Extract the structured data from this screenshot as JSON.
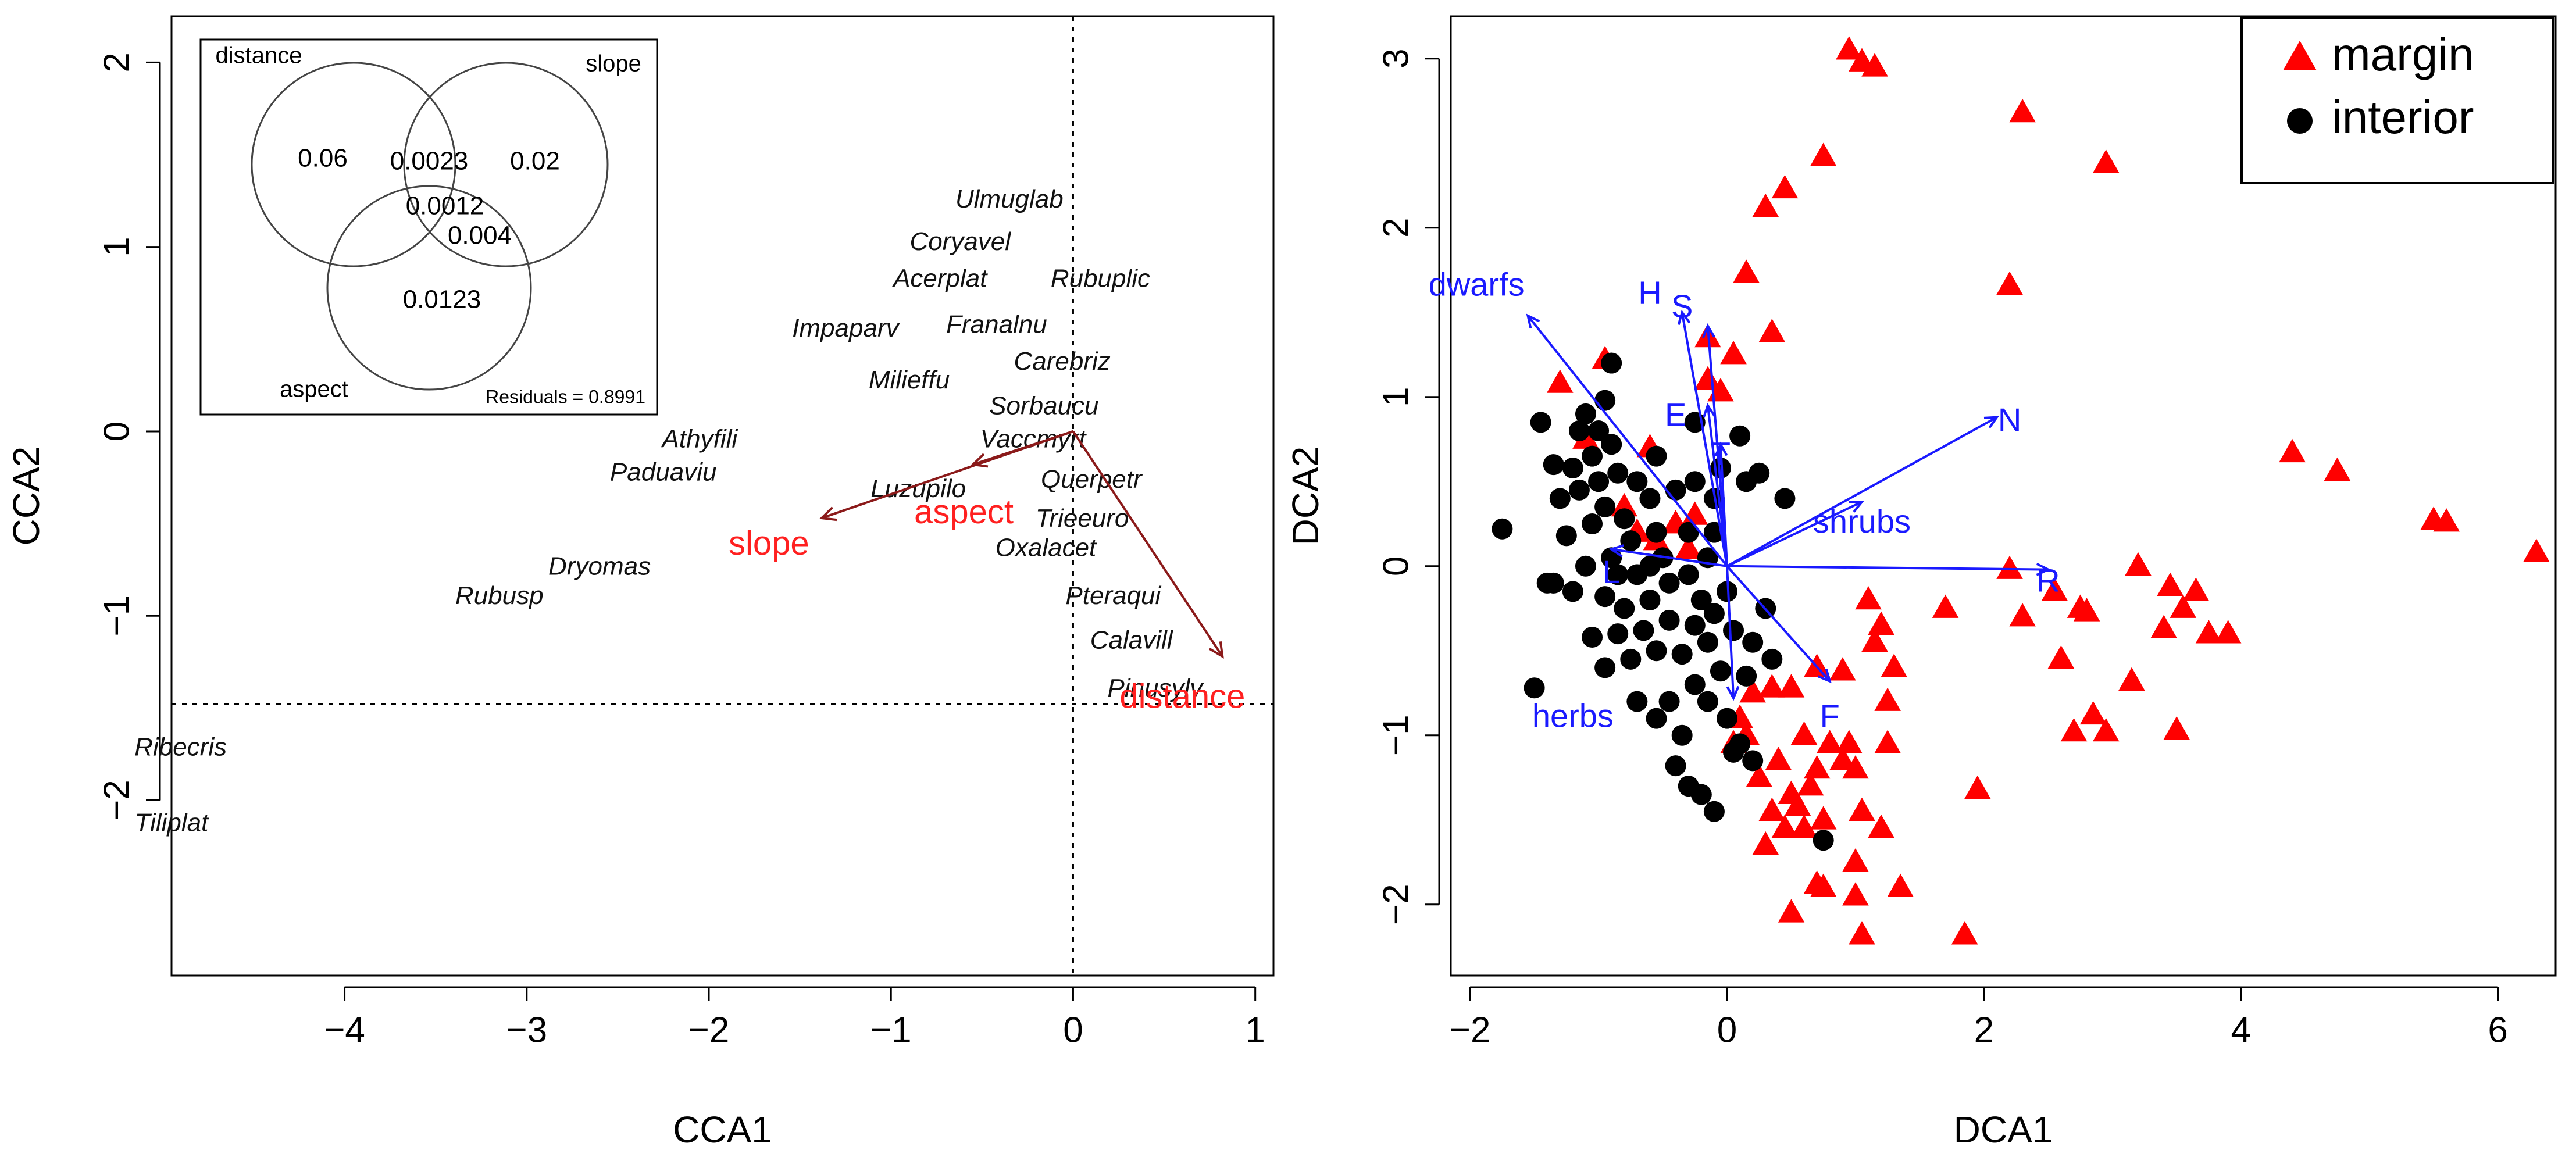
{
  "colors": {
    "arrow_cca": "#8b1a1a",
    "env_label": "#ff2020",
    "arrow_dca": "#1a1aff",
    "margin": "#ff0000",
    "interior": "#000000"
  },
  "chart_data": [
    {
      "type": "scatter",
      "panel": "left",
      "xlabel": "CCA1",
      "ylabel": "CCA2",
      "xlim": [
        -4.95,
        1.1
      ],
      "ylim": [
        -2.95,
        2.25
      ],
      "xticks": [
        -4,
        -3,
        -2,
        -1,
        0,
        1
      ],
      "yticks": [
        -2,
        -1,
        0,
        1,
        2
      ],
      "xtick_labels": [
        "−4",
        "−3",
        "−2",
        "−1",
        "0",
        "1"
      ],
      "ytick_labels": [
        "−2",
        "−1",
        "0",
        "1",
        "2"
      ],
      "reference_lines": {
        "vertical_x": 0,
        "horizontal_y": -1.48
      },
      "species": [
        {
          "label": "Ulmuglab",
          "x": -0.35,
          "y": 1.25
        },
        {
          "label": "Coryavel",
          "x": -0.62,
          "y": 1.02
        },
        {
          "label": "Acerplat",
          "x": -0.73,
          "y": 0.82
        },
        {
          "label": "Rubuplic",
          "x": 0.15,
          "y": 0.82
        },
        {
          "label": "Franalnu",
          "x": -0.42,
          "y": 0.57
        },
        {
          "label": "Impaparv",
          "x": -1.25,
          "y": 0.55
        },
        {
          "label": "Carebriz",
          "x": -0.06,
          "y": 0.37
        },
        {
          "label": "Milieffu",
          "x": -0.9,
          "y": 0.27
        },
        {
          "label": "Sorbaucu",
          "x": -0.16,
          "y": 0.13
        },
        {
          "label": "Vaccmyrt",
          "x": -0.22,
          "y": -0.05
        },
        {
          "label": "Athyfili",
          "x": -2.05,
          "y": -0.05
        },
        {
          "label": "Paduaviu",
          "x": -2.25,
          "y": -0.23
        },
        {
          "label": "Querpetr",
          "x": 0.1,
          "y": -0.27
        },
        {
          "label": "Luzupilo",
          "x": -0.85,
          "y": -0.32
        },
        {
          "label": "Trieeuro",
          "x": 0.05,
          "y": -0.48
        },
        {
          "label": "Oxalacet",
          "x": -0.15,
          "y": -0.64
        },
        {
          "label": "Dryomas",
          "x": -2.6,
          "y": -0.74
        },
        {
          "label": "Rubusp",
          "x": -3.15,
          "y": -0.9
        },
        {
          "label": "Pteraqui",
          "x": 0.22,
          "y": -0.9
        },
        {
          "label": "Calavill",
          "x": 0.32,
          "y": -1.14
        },
        {
          "label": "Pinusylv",
          "x": 0.45,
          "y": -1.4
        },
        {
          "label": "Ribecris",
          "x": -4.9,
          "y": -1.72
        },
        {
          "label": "Tiliplat",
          "x": -4.95,
          "y": -2.13
        }
      ],
      "env_vectors": [
        {
          "label": "slope",
          "x": -1.38,
          "y": -0.47,
          "label_x": -1.67,
          "label_y": -0.62
        },
        {
          "label": "aspect",
          "x": -0.55,
          "y": -0.18,
          "label_x": -0.6,
          "label_y": -0.45
        },
        {
          "label": "distance",
          "x": 0.82,
          "y": -1.22,
          "label_x": 0.6,
          "label_y": -1.45
        }
      ],
      "venn": {
        "sets": [
          "distance",
          "slope",
          "aspect"
        ],
        "values": [
          {
            "region": "distance",
            "value": "0.06"
          },
          {
            "region": "distance-slope",
            "value": "0.0023"
          },
          {
            "region": "slope",
            "value": "0.02"
          },
          {
            "region": "all",
            "value": "0.0012"
          },
          {
            "region": "slope-aspect",
            "value": "0.004"
          },
          {
            "region": "aspect",
            "value": "0.0123"
          }
        ],
        "residuals": "Residuals = 0.8991"
      }
    },
    {
      "type": "scatter",
      "panel": "right",
      "xlabel": "DCA1",
      "ylabel": "DCA2",
      "xlim": [
        -2.15,
        6.45
      ],
      "ylim": [
        -2.42,
        3.25
      ],
      "xticks": [
        -2,
        0,
        2,
        4,
        6
      ],
      "yticks": [
        -2,
        -1,
        0,
        1,
        2,
        3
      ],
      "xtick_labels": [
        "−2",
        "0",
        "2",
        "4",
        "6"
      ],
      "ytick_labels": [
        "−2",
        "−1",
        "0",
        "1",
        "2",
        "3"
      ],
      "legend": {
        "position": "top-right",
        "entries": [
          {
            "label": "margin",
            "marker": "triangle"
          },
          {
            "label": "interior",
            "marker": "circle"
          }
        ]
      },
      "series": [
        {
          "name": "margin",
          "marker": "triangle",
          "points": [
            [
              0.95,
              3.05
            ],
            [
              1.05,
              2.98
            ],
            [
              1.15,
              2.95
            ],
            [
              2.3,
              2.68
            ],
            [
              2.95,
              2.38
            ],
            [
              0.75,
              2.42
            ],
            [
              0.45,
              2.23
            ],
            [
              0.3,
              2.12
            ],
            [
              0.15,
              1.73
            ],
            [
              2.2,
              1.66
            ],
            [
              -0.15,
              1.35
            ],
            [
              0.35,
              1.38
            ],
            [
              -0.95,
              1.22
            ],
            [
              -0.15,
              1.1
            ],
            [
              -1.3,
              1.08
            ],
            [
              -0.05,
              1.03
            ],
            [
              0.05,
              1.25
            ],
            [
              -0.6,
              0.7
            ],
            [
              -1.1,
              0.75
            ],
            [
              4.4,
              0.67
            ],
            [
              4.75,
              0.56
            ],
            [
              5.5,
              0.27
            ],
            [
              5.6,
              0.26
            ],
            [
              6.3,
              0.08
            ],
            [
              -0.8,
              0.35
            ],
            [
              -0.4,
              0.25
            ],
            [
              -0.3,
              0.1
            ],
            [
              -0.7,
              0.2
            ],
            [
              -0.55,
              0.15
            ],
            [
              -0.25,
              0.3
            ],
            [
              2.2,
              -0.02
            ],
            [
              3.2,
              0.0
            ],
            [
              3.45,
              -0.12
            ],
            [
              3.65,
              -0.15
            ],
            [
              2.55,
              -0.15
            ],
            [
              2.75,
              -0.25
            ],
            [
              2.8,
              -0.27
            ],
            [
              3.55,
              -0.25
            ],
            [
              3.4,
              -0.37
            ],
            [
              3.75,
              -0.4
            ],
            [
              3.9,
              -0.4
            ],
            [
              1.1,
              -0.2
            ],
            [
              1.2,
              -0.35
            ],
            [
              1.7,
              -0.25
            ],
            [
              2.3,
              -0.3
            ],
            [
              1.15,
              -0.45
            ],
            [
              1.3,
              -0.6
            ],
            [
              0.7,
              -0.6
            ],
            [
              0.9,
              -0.62
            ],
            [
              2.6,
              -0.55
            ],
            [
              3.15,
              -0.68
            ],
            [
              1.25,
              -0.8
            ],
            [
              2.85,
              -0.88
            ],
            [
              2.95,
              -0.98
            ],
            [
              2.7,
              -0.98
            ],
            [
              3.5,
              -0.97
            ],
            [
              0.5,
              -0.72
            ],
            [
              0.35,
              -0.72
            ],
            [
              0.2,
              -0.75
            ],
            [
              0.6,
              -1.0
            ],
            [
              0.8,
              -1.05
            ],
            [
              0.4,
              -1.15
            ],
            [
              0.25,
              -1.25
            ],
            [
              0.05,
              -1.05
            ],
            [
              0.15,
              -1.0
            ],
            [
              1.25,
              -1.05
            ],
            [
              0.9,
              -1.15
            ],
            [
              1.0,
              -1.2
            ],
            [
              0.65,
              -1.3
            ],
            [
              0.5,
              -1.35
            ],
            [
              0.35,
              -1.45
            ],
            [
              0.45,
              -1.55
            ],
            [
              0.3,
              -1.65
            ],
            [
              0.6,
              -1.55
            ],
            [
              1.05,
              -1.45
            ],
            [
              1.2,
              -1.55
            ],
            [
              1.95,
              -1.32
            ],
            [
              1.0,
              -1.75
            ],
            [
              0.75,
              -1.9
            ],
            [
              0.7,
              -1.88
            ],
            [
              1.35,
              -1.9
            ],
            [
              1.0,
              -1.95
            ],
            [
              0.5,
              -2.05
            ],
            [
              1.05,
              -2.18
            ],
            [
              1.85,
              -2.18
            ],
            [
              0.55,
              -1.42
            ],
            [
              0.75,
              -1.5
            ],
            [
              0.95,
              -1.05
            ],
            [
              0.7,
              -1.2
            ],
            [
              0.1,
              -0.9
            ]
          ]
        },
        {
          "name": "interior",
          "marker": "circle",
          "points": [
            [
              -1.75,
              0.22
            ],
            [
              -1.45,
              0.85
            ],
            [
              -1.35,
              0.6
            ],
            [
              -1.5,
              -0.72
            ],
            [
              -1.4,
              -0.1
            ],
            [
              -0.9,
              1.2
            ],
            [
              -0.25,
              0.85
            ],
            [
              0.1,
              0.77
            ],
            [
              -0.05,
              0.58
            ],
            [
              -0.95,
              0.98
            ],
            [
              -1.1,
              0.9
            ],
            [
              -1.0,
              0.8
            ],
            [
              -0.9,
              0.72
            ],
            [
              -1.05,
              0.65
            ],
            [
              -1.2,
              0.58
            ],
            [
              -0.85,
              0.55
            ],
            [
              -0.7,
              0.5
            ],
            [
              -1.15,
              0.45
            ],
            [
              -1.3,
              0.4
            ],
            [
              -0.95,
              0.35
            ],
            [
              -0.6,
              0.4
            ],
            [
              -0.8,
              0.28
            ],
            [
              -1.05,
              0.25
            ],
            [
              -1.25,
              0.18
            ],
            [
              -0.75,
              0.15
            ],
            [
              -0.55,
              0.2
            ],
            [
              -0.4,
              0.45
            ],
            [
              -0.25,
              0.5
            ],
            [
              -0.1,
              0.4
            ],
            [
              -0.1,
              0.2
            ],
            [
              0.15,
              0.5
            ],
            [
              0.25,
              0.55
            ],
            [
              -0.5,
              0.05
            ],
            [
              -0.7,
              -0.05
            ],
            [
              -0.9,
              0.05
            ],
            [
              -1.1,
              0.0
            ],
            [
              -1.35,
              -0.1
            ],
            [
              -1.2,
              -0.15
            ],
            [
              -0.95,
              -0.18
            ],
            [
              -0.8,
              -0.25
            ],
            [
              -0.6,
              -0.2
            ],
            [
              -0.45,
              -0.1
            ],
            [
              -0.3,
              -0.05
            ],
            [
              -0.15,
              0.05
            ],
            [
              0.0,
              -0.15
            ],
            [
              -0.1,
              -0.28
            ],
            [
              -0.25,
              -0.35
            ],
            [
              -0.45,
              -0.32
            ],
            [
              -0.65,
              -0.38
            ],
            [
              -0.85,
              -0.4
            ],
            [
              -1.05,
              -0.42
            ],
            [
              -0.95,
              -0.6
            ],
            [
              -0.75,
              -0.55
            ],
            [
              -0.55,
              -0.5
            ],
            [
              -0.35,
              -0.52
            ],
            [
              -0.15,
              -0.45
            ],
            [
              0.05,
              -0.38
            ],
            [
              0.2,
              -0.45
            ],
            [
              0.35,
              -0.55
            ],
            [
              0.15,
              -0.65
            ],
            [
              -0.05,
              -0.62
            ],
            [
              -0.25,
              -0.7
            ],
            [
              -0.45,
              -0.8
            ],
            [
              -0.15,
              -0.8
            ],
            [
              0.0,
              -0.9
            ],
            [
              0.1,
              -1.05
            ],
            [
              0.2,
              -1.15
            ],
            [
              -0.35,
              -1.0
            ],
            [
              -0.4,
              -1.18
            ],
            [
              -0.3,
              -1.3
            ],
            [
              -0.2,
              -1.35
            ],
            [
              -0.1,
              -1.45
            ],
            [
              0.05,
              -1.1
            ],
            [
              -0.55,
              -0.9
            ],
            [
              -0.7,
              -0.8
            ],
            [
              0.75,
              -1.62
            ],
            [
              0.45,
              0.4
            ],
            [
              -1.0,
              0.5
            ],
            [
              -0.6,
              0.0
            ],
            [
              -0.3,
              0.2
            ],
            [
              -0.85,
              -0.05
            ],
            [
              0.3,
              -0.25
            ],
            [
              -1.15,
              0.8
            ],
            [
              -0.55,
              0.65
            ],
            [
              -0.2,
              -0.2
            ]
          ]
        }
      ],
      "env_vectors": [
        {
          "label": "dwarfs",
          "x": -1.55,
          "y": 1.48,
          "label_x": -1.95,
          "label_y": 1.65
        },
        {
          "label": "H",
          "x": -0.35,
          "y": 1.5,
          "label_x": -0.6,
          "label_y": 1.6
        },
        {
          "label": "S",
          "x": -0.15,
          "y": 1.42,
          "label_x": -0.35,
          "label_y": 1.52
        },
        {
          "label": "E",
          "x": -0.15,
          "y": 0.95,
          "label_x": -0.4,
          "label_y": 0.88
        },
        {
          "label": "T",
          "x": -0.05,
          "y": 0.72,
          "label_x": -0.05,
          "label_y": 0.65
        },
        {
          "label": "N",
          "x": 2.1,
          "y": 0.88,
          "label_x": 2.2,
          "label_y": 0.85
        },
        {
          "label": "shrubs",
          "x": 1.05,
          "y": 0.38,
          "label_x": 1.05,
          "label_y": 0.25
        },
        {
          "label": "R",
          "x": 2.5,
          "y": -0.02,
          "label_x": 2.5,
          "label_y": -0.1
        },
        {
          "label": "L",
          "x": -0.9,
          "y": 0.1,
          "label_x": -0.9,
          "label_y": -0.05
        },
        {
          "label": "F",
          "x": 0.8,
          "y": -0.68,
          "label_x": 0.8,
          "label_y": -0.9
        },
        {
          "label": "herbs",
          "x": 0.05,
          "y": -0.78,
          "label_x": -1.2,
          "label_y": -0.9
        }
      ]
    }
  ]
}
